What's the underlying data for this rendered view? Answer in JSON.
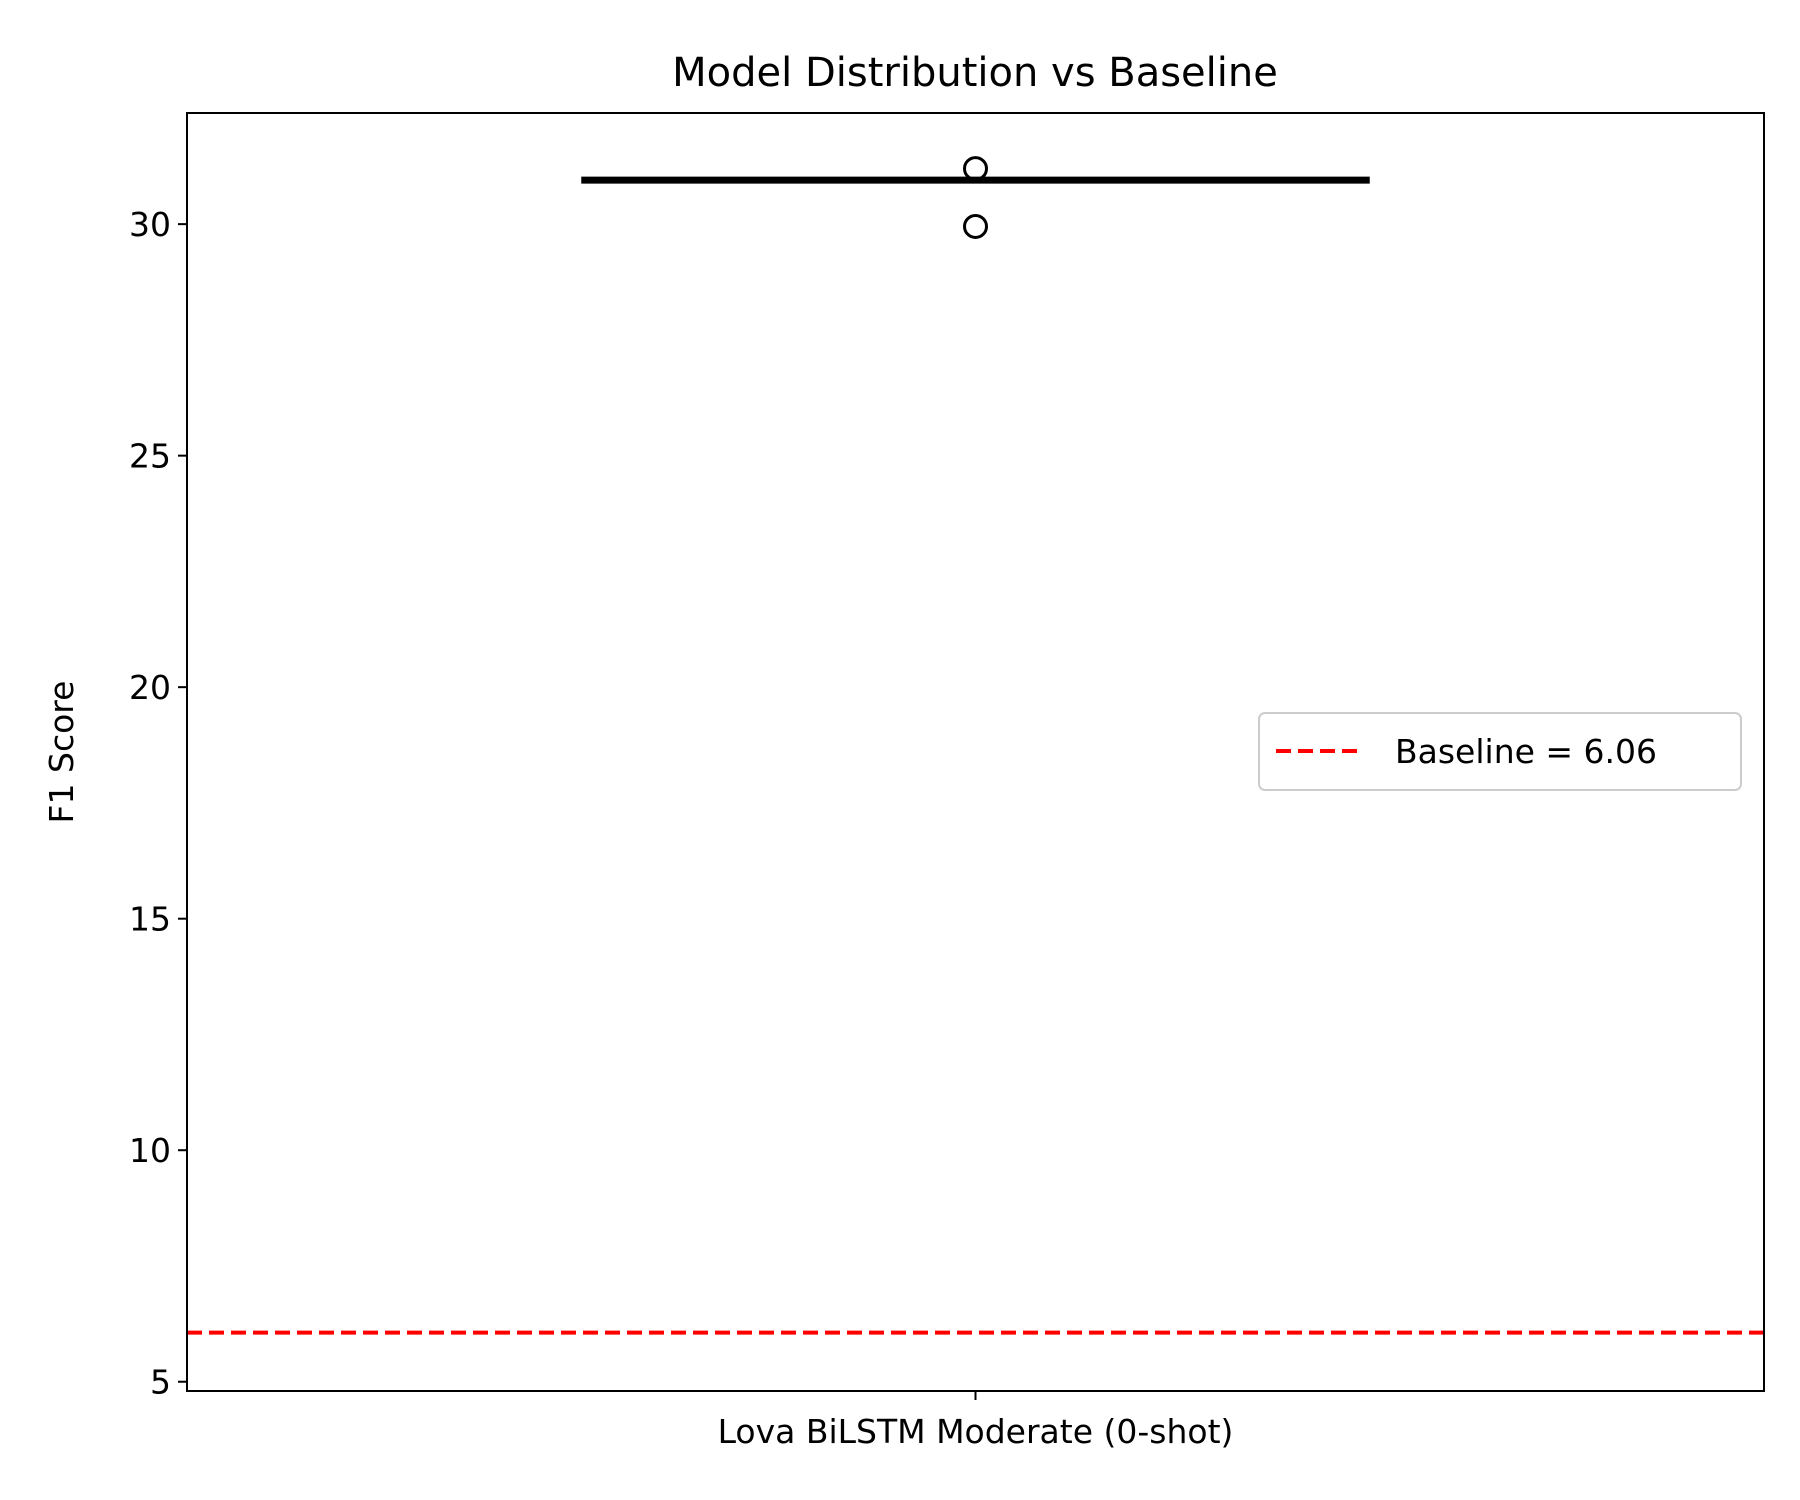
{
  "chart_data": {
    "type": "box",
    "title": "Model Distribution vs Baseline",
    "xlabel": "",
    "ylabel": "F1 Score",
    "ylim": [
      4.8,
      32.4
    ],
    "yticks": [
      5,
      10,
      15,
      20,
      25,
      30
    ],
    "ytick_labels": [
      "5",
      "10",
      "15",
      "20",
      "25",
      "30"
    ],
    "categories": [
      "Lova BiLSTM Moderate (0-shot)"
    ],
    "boxes": [
      {
        "category": "Lova BiLSTM Moderate (0-shot)",
        "q1": 30.95,
        "median": 30.95,
        "q3": 30.95,
        "whisker_low": 30.95,
        "whisker_high": 30.95,
        "outliers": [
          31.2,
          29.95
        ]
      }
    ],
    "reference_lines": [
      {
        "label": "Baseline = 6.06",
        "value": 6.06,
        "color": "#ff0000",
        "style": "dashed"
      }
    ],
    "legend": {
      "placement": "center-right",
      "entries": [
        "Baseline = 6.06"
      ]
    },
    "grid": false,
    "colors": {
      "box": "#000000",
      "outlier_edge": "#000000",
      "baseline": "#ff0000",
      "axes": "#000000",
      "legend_border": "#cccccc"
    }
  }
}
